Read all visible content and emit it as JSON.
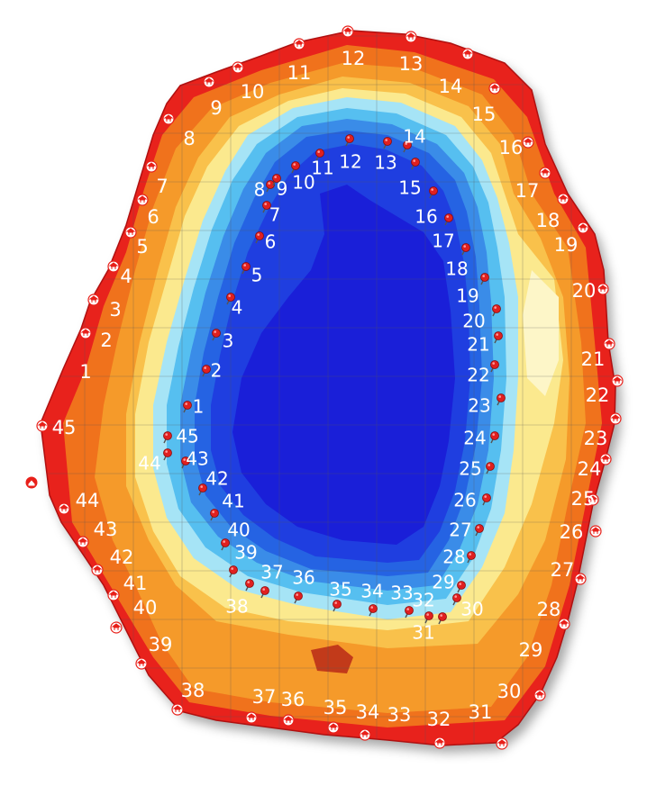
{
  "map": {
    "colors": {
      "background": "#ffffff",
      "shore_red": "#e8201a",
      "orange_outer": "#f0721c",
      "orange": "#f59a2a",
      "orange_light": "#f9c14b",
      "yellow": "#fbe98e",
      "pale": "#fdf6c8",
      "cyan_light": "#a6e4f6",
      "cyan": "#56bff0",
      "blue_light": "#3a8ce8",
      "blue": "#2563e3",
      "blue_deep": "#1f3ee0",
      "blue_core": "#1a1fd8",
      "pin": "#e02020",
      "shelter_icon": "#e8201a"
    },
    "icons": {
      "pin": "map-pin-icon",
      "shelter": "picnic-shelter-icon",
      "home": "home-icon"
    },
    "outer_labels": [
      "1",
      "2",
      "3",
      "4",
      "5",
      "6",
      "7",
      "8",
      "9",
      "10",
      "11",
      "12",
      "13",
      "14",
      "15",
      "16",
      "17",
      "18",
      "19",
      "20",
      "21",
      "22",
      "23",
      "24",
      "25",
      "26",
      "27",
      "28",
      "29",
      "30",
      "31",
      "32",
      "33",
      "34",
      "35",
      "36",
      "37",
      "38",
      "39",
      "40",
      "41",
      "42",
      "43",
      "44",
      "45"
    ],
    "inner_labels": [
      "1",
      "2",
      "3",
      "4",
      "5",
      "6",
      "7",
      "8",
      "9",
      "10",
      "11",
      "12",
      "13",
      "14",
      "15",
      "16",
      "17",
      "18",
      "19",
      "20",
      "21",
      "22",
      "23",
      "24",
      "25",
      "26",
      "27",
      "28",
      "29",
      "30",
      "31",
      "32",
      "33",
      "34",
      "35",
      "36",
      "37",
      "38",
      "39",
      "40",
      "41",
      "42",
      "43",
      "44",
      "45"
    ]
  }
}
